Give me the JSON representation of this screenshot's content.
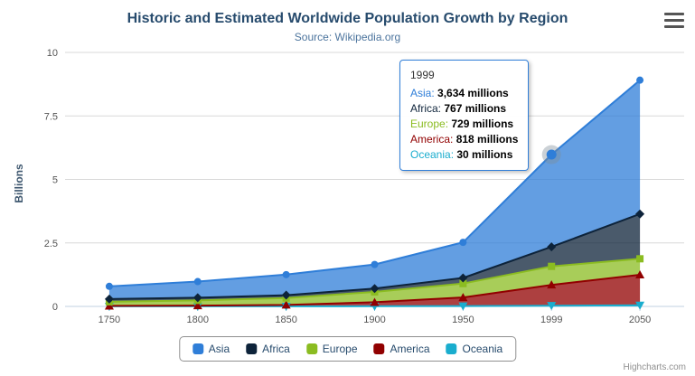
{
  "header": {
    "title": "Historic and Estimated Worldwide Population Growth by Region",
    "subtitle": "Source: Wikipedia.org"
  },
  "credits": "Highcharts.com",
  "chart_data": {
    "type": "area",
    "stacking": "normal",
    "title": "Historic and Estimated Worldwide Population Growth by Region",
    "subtitle": "Source: Wikipedia.org",
    "ylabel": "Billions",
    "xlabel": "",
    "unit": "millions",
    "categories": [
      "1750",
      "1800",
      "1850",
      "1900",
      "1950",
      "1999",
      "2050"
    ],
    "yticks": [
      "0",
      "2.5",
      "5",
      "7.5",
      "10"
    ],
    "ytick_values": [
      0,
      2.5,
      5,
      7.5,
      10
    ],
    "ylim": [
      0,
      10
    ],
    "grid": true,
    "legend_position": "bottom",
    "series": [
      {
        "name": "Asia",
        "color": "#2f7ed8",
        "marker": "circle",
        "values_millions": [
          502,
          635,
          809,
          947,
          1402,
          3634,
          5268
        ]
      },
      {
        "name": "Africa",
        "color": "#0d233a",
        "marker": "diamond",
        "values_millions": [
          106,
          107,
          111,
          133,
          221,
          767,
          1766
        ]
      },
      {
        "name": "Europe",
        "color": "#8bbc21",
        "marker": "square",
        "values_millions": [
          163,
          203,
          276,
          408,
          547,
          729,
          628
        ]
      },
      {
        "name": "America",
        "color": "#910000",
        "marker": "triangle",
        "values_millions": [
          18,
          31,
          54,
          156,
          339,
          818,
          1201
        ]
      },
      {
        "name": "Oceania",
        "color": "#1aadce",
        "marker": "triangle-down",
        "values_millions": [
          2,
          2,
          2,
          6,
          13,
          30,
          46
        ]
      }
    ]
  },
  "tooltip": {
    "header": "1999",
    "hover_category_index": 5,
    "hover_series": "Asia",
    "rows": [
      {
        "label": "Asia",
        "value": "3,634 millions",
        "color": "#2f7ed8"
      },
      {
        "label": "Africa",
        "value": "767 millions",
        "color": "#0d233a"
      },
      {
        "label": "Europe",
        "value": "729 millions",
        "color": "#8bbc21"
      },
      {
        "label": "America",
        "value": "818 millions",
        "color": "#910000"
      },
      {
        "label": "Oceania",
        "value": "30 millions",
        "color": "#1aadce"
      }
    ]
  }
}
